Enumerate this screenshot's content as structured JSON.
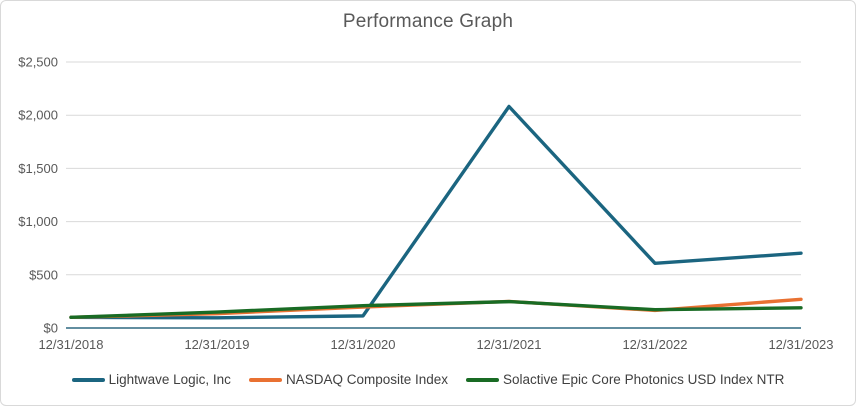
{
  "chart_data": {
    "type": "line",
    "title": "Performance Graph",
    "categories": [
      "12/31/2018",
      "12/31/2019",
      "12/31/2020",
      "12/31/2021",
      "12/31/2022",
      "12/31/2023"
    ],
    "series": [
      {
        "name": "Lightwave Logic, Inc",
        "color": "#1b6580",
        "values": [
          100,
          96,
          114,
          2082,
          608,
          703
        ]
      },
      {
        "name": "NASDAQ Composite Index",
        "color": "#e97132",
        "values": [
          100,
          135,
          197,
          250,
          165,
          270
        ]
      },
      {
        "name": "Solactive Epic Core Photonics USD Index NTR",
        "color": "#196b24",
        "values": [
          100,
          150,
          210,
          248,
          172,
          190
        ]
      }
    ],
    "yticks": [
      {
        "label": "$0",
        "value": 0
      },
      {
        "label": "$500",
        "value": 500
      },
      {
        "label": "$1,000",
        "value": 1000
      },
      {
        "label": "$1,500",
        "value": 1500
      },
      {
        "label": "$2,000",
        "value": 2000
      },
      {
        "label": "$2,500",
        "value": 2500
      }
    ],
    "ylim": [
      0,
      2500
    ],
    "grid": true,
    "legend_position": "bottom",
    "colors": {
      "gridline": "#d9d9d9",
      "axis_line": "#2e6880",
      "axis_label": "#595959",
      "title": "#595959",
      "legend_text": "#404040",
      "frame_border": "#d9d9d9"
    }
  }
}
